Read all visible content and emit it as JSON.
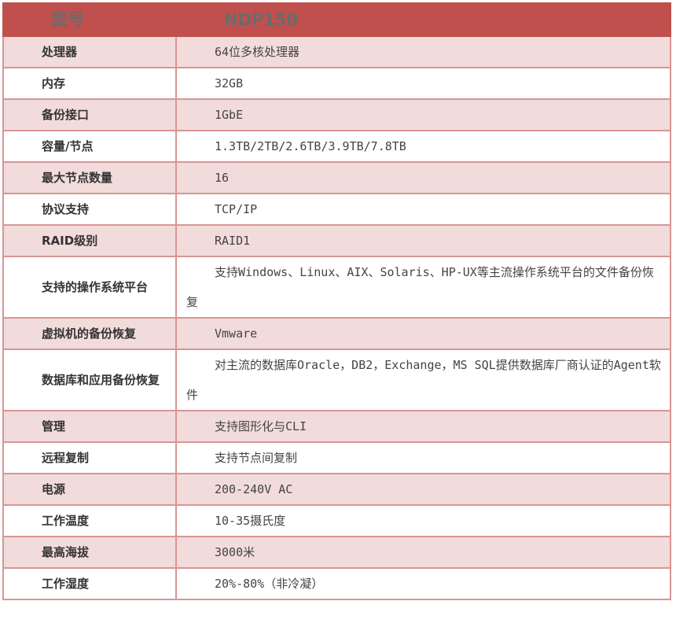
{
  "header": {
    "key": "型号",
    "value": "NDP150"
  },
  "rows": [
    {
      "key": "处理器",
      "value": "64位多核处理器"
    },
    {
      "key": "内存",
      "value": "32GB"
    },
    {
      "key": "备份接口",
      "value": "1GbE"
    },
    {
      "key": "容量/节点",
      "value": "1.3TB/2TB/2.6TB/3.9TB/7.8TB"
    },
    {
      "key": "最大节点数量",
      "value": "16"
    },
    {
      "key": "协议支持",
      "value": "TCP/IP"
    },
    {
      "key": "RAID级别",
      "value": "RAID1"
    },
    {
      "key": "支持的操作系统平台",
      "value": "支持Windows、Linux、AIX、Solaris、HP-UX等主流操作系统平台的文件备份恢复"
    },
    {
      "key": "虚拟机的备份恢复",
      "value": "Vmware"
    },
    {
      "key": "数据库和应用备份恢复",
      "value": "对主流的数据库Oracle，DB2，Exchange，MS SQL提供数据库厂商认证的Agent软件"
    },
    {
      "key": "管理",
      "value": "支持图形化与CLI"
    },
    {
      "key": "远程复制",
      "value": "支持节点间复制"
    },
    {
      "key": "电源",
      "value": "200-240V AC"
    },
    {
      "key": "工作温度",
      "value": "10-35摄氏度"
    },
    {
      "key": "最高海拔",
      "value": "3000米"
    },
    {
      "key": "工作湿度",
      "value": "20%-80%（非冷凝）"
    }
  ],
  "colors": {
    "header_bg": "#c0504d",
    "row_alt_bg": "#f2dbdb",
    "border": "#d99594"
  }
}
